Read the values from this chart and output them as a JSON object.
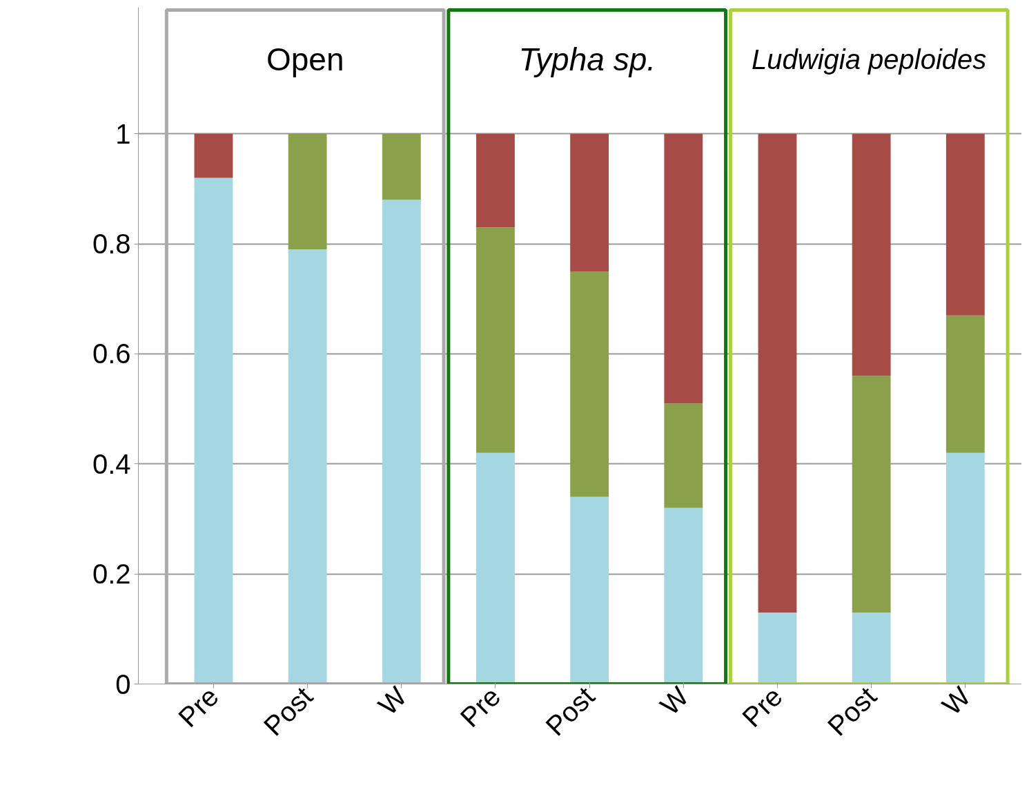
{
  "chart_data": {
    "type": "bar",
    "stacked": true,
    "categories": [
      "Pre",
      "Post",
      "W",
      "Pre",
      "Post",
      "W",
      "Pre",
      "Post",
      "W"
    ],
    "series": [
      {
        "color": "#a5d7e3",
        "values": [
          0.92,
          0.79,
          0.88,
          0.42,
          0.34,
          0.32,
          0.13,
          0.13,
          0.42
        ]
      },
      {
        "color": "#8aa04a",
        "values": [
          0,
          0.21,
          0.12,
          0.41,
          0.41,
          0.19,
          0,
          0.43,
          0.25
        ]
      },
      {
        "color": "#a64b45",
        "values": [
          0.08,
          0,
          0,
          0.17,
          0.25,
          0.49,
          0.87,
          0.44,
          0.33
        ]
      }
    ],
    "ylim": [
      0,
      1.23
    ],
    "yticks": [
      0,
      0.2,
      0.4,
      0.6,
      0.8,
      1
    ],
    "grid": "y",
    "annotations": [
      "Open",
      "Typha sp.",
      "Ludwigia peploides"
    ]
  }
}
